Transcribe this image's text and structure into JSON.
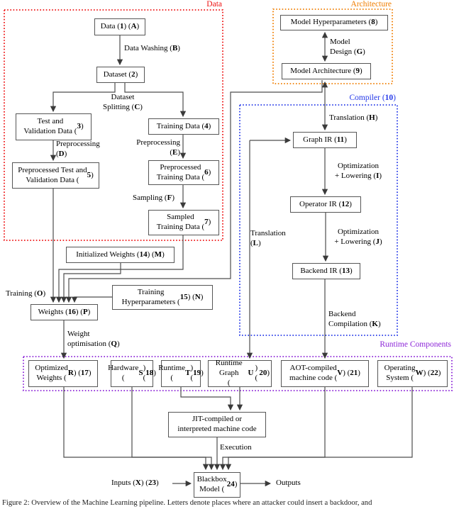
{
  "figure_caption": "Figure 2: Overview of the Machine Learning pipeline. Letters denote places where an attacker could insert a backdoor, and",
  "regions": {
    "data": {
      "label": "Data",
      "color": "#ee1111"
    },
    "architecture": {
      "label": "Architecture",
      "color": "#f07d00"
    },
    "compiler": {
      "label": "Compiler (10)",
      "color": "#2438e8"
    },
    "runtime": {
      "label": "Runtime Components",
      "color": "#8c24d8"
    }
  },
  "nodes": {
    "data_1": "Data (1) (A)",
    "dataset_2": "Dataset (2)",
    "test_val_3": "Test and\nValidation Data (3)",
    "training_4": "Training Data (4)",
    "prep_test_val_5": "Preprocessed Test and\nValidation Data (5)",
    "prep_training_6": "Preprocessed\nTraining Data (6)",
    "sampled_7": "Sampled\nTraining Data (7)",
    "model_hyp_8": "Model Hyperparameters (8)",
    "model_arch_9": "Model Architecture (9)",
    "graph_ir_11": "Graph IR (11)",
    "operator_ir_12": "Operator IR (12)",
    "backend_ir_13": "Backend IR (13)",
    "init_weights_14": "Initialized Weights (14) (M)",
    "train_hyp_15": "Training\nHyperparameters (15) (N)",
    "weights_16": "Weights (16) (P)",
    "opt_weights_17": "Optimized\nWeights (R) (17)",
    "hardware_18": "Hardware\n(S) (18)",
    "runtime_19": "Runtime\n(T) (19)",
    "runtime_graph_20": "Runtime Graph\n(U) (20)",
    "aot_21": "AOT-compiled\nmachine code (V) (21)",
    "os_22": "Operating\nSystem (W) (22)",
    "jit": "JIT-compiled or\ninterpreted machine code",
    "blackbox_24": "Blackbox\nModel (24)"
  },
  "edge_labels": {
    "data_washing": "Data Washing (B)",
    "dataset_splitting": "Dataset\nSplitting (C)",
    "preprocessing_d": "Preprocessing\n(D)",
    "preprocessing_e": "Preprocessing\n(E)",
    "sampling_f": "Sampling (F)",
    "model_design_g": "Model\nDesign (G)",
    "translation_h": "Translation (H)",
    "opt_lowering_i": "Optimization\n+ Lowering (I)",
    "opt_lowering_j": "Optimization\n+ Lowering (J)",
    "backend_comp_k": "Backend\nCompilation (K)",
    "translation_l": "Translation\n(L)",
    "training_o": "Training (O)",
    "weight_opt_q": "Weight\noptimisation (Q)",
    "execution": "Execution",
    "inputs": "Inputs (X) (23)",
    "outputs": "Outputs"
  }
}
